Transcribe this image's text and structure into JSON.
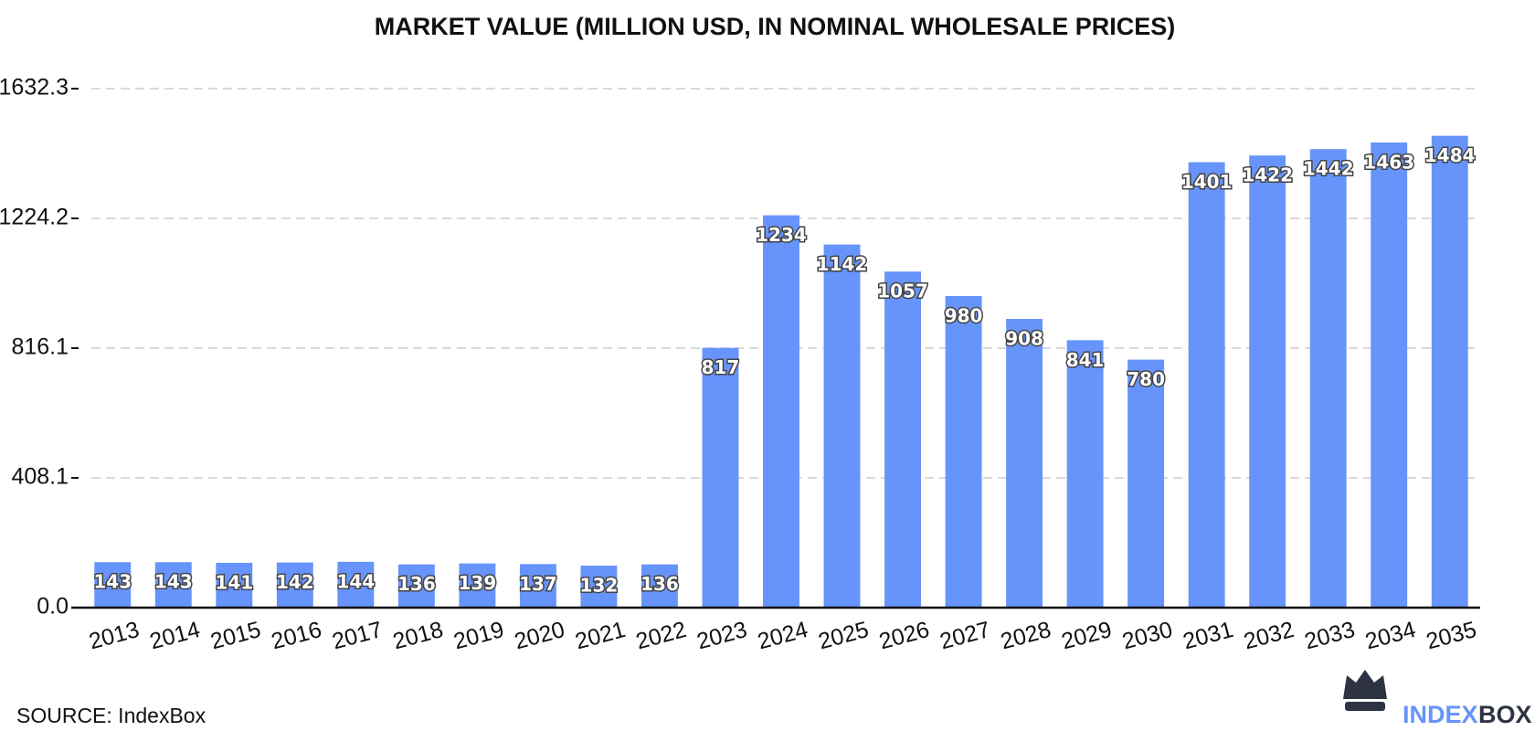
{
  "chart_data": {
    "type": "bar",
    "title": "MARKET VALUE (MILLION USD, IN NOMINAL WHOLESALE PRICES)",
    "categories": [
      "2013",
      "2014",
      "2015",
      "2016",
      "2017",
      "2018",
      "2019",
      "2020",
      "2021",
      "2022",
      "2023",
      "2024",
      "2025",
      "2026",
      "2027",
      "2028",
      "2029",
      "2030",
      "2031",
      "2032",
      "2033",
      "2034",
      "2035"
    ],
    "values": [
      143,
      143,
      141,
      142,
      144,
      136,
      139,
      137,
      132,
      136,
      817,
      1234,
      1142,
      1057,
      980,
      908,
      841,
      780,
      1401,
      1422,
      1442,
      1463,
      1484
    ],
    "color": "#6694fb",
    "ylim": [
      0,
      1632.3
    ],
    "yticks": [
      {
        "value": 0,
        "label": "0.0"
      },
      408.1,
      816.1,
      1224.2,
      1632.3
    ],
    "grid": true,
    "source": "SOURCE: IndexBox",
    "brand": [
      "INDEX",
      "BOX"
    ]
  }
}
